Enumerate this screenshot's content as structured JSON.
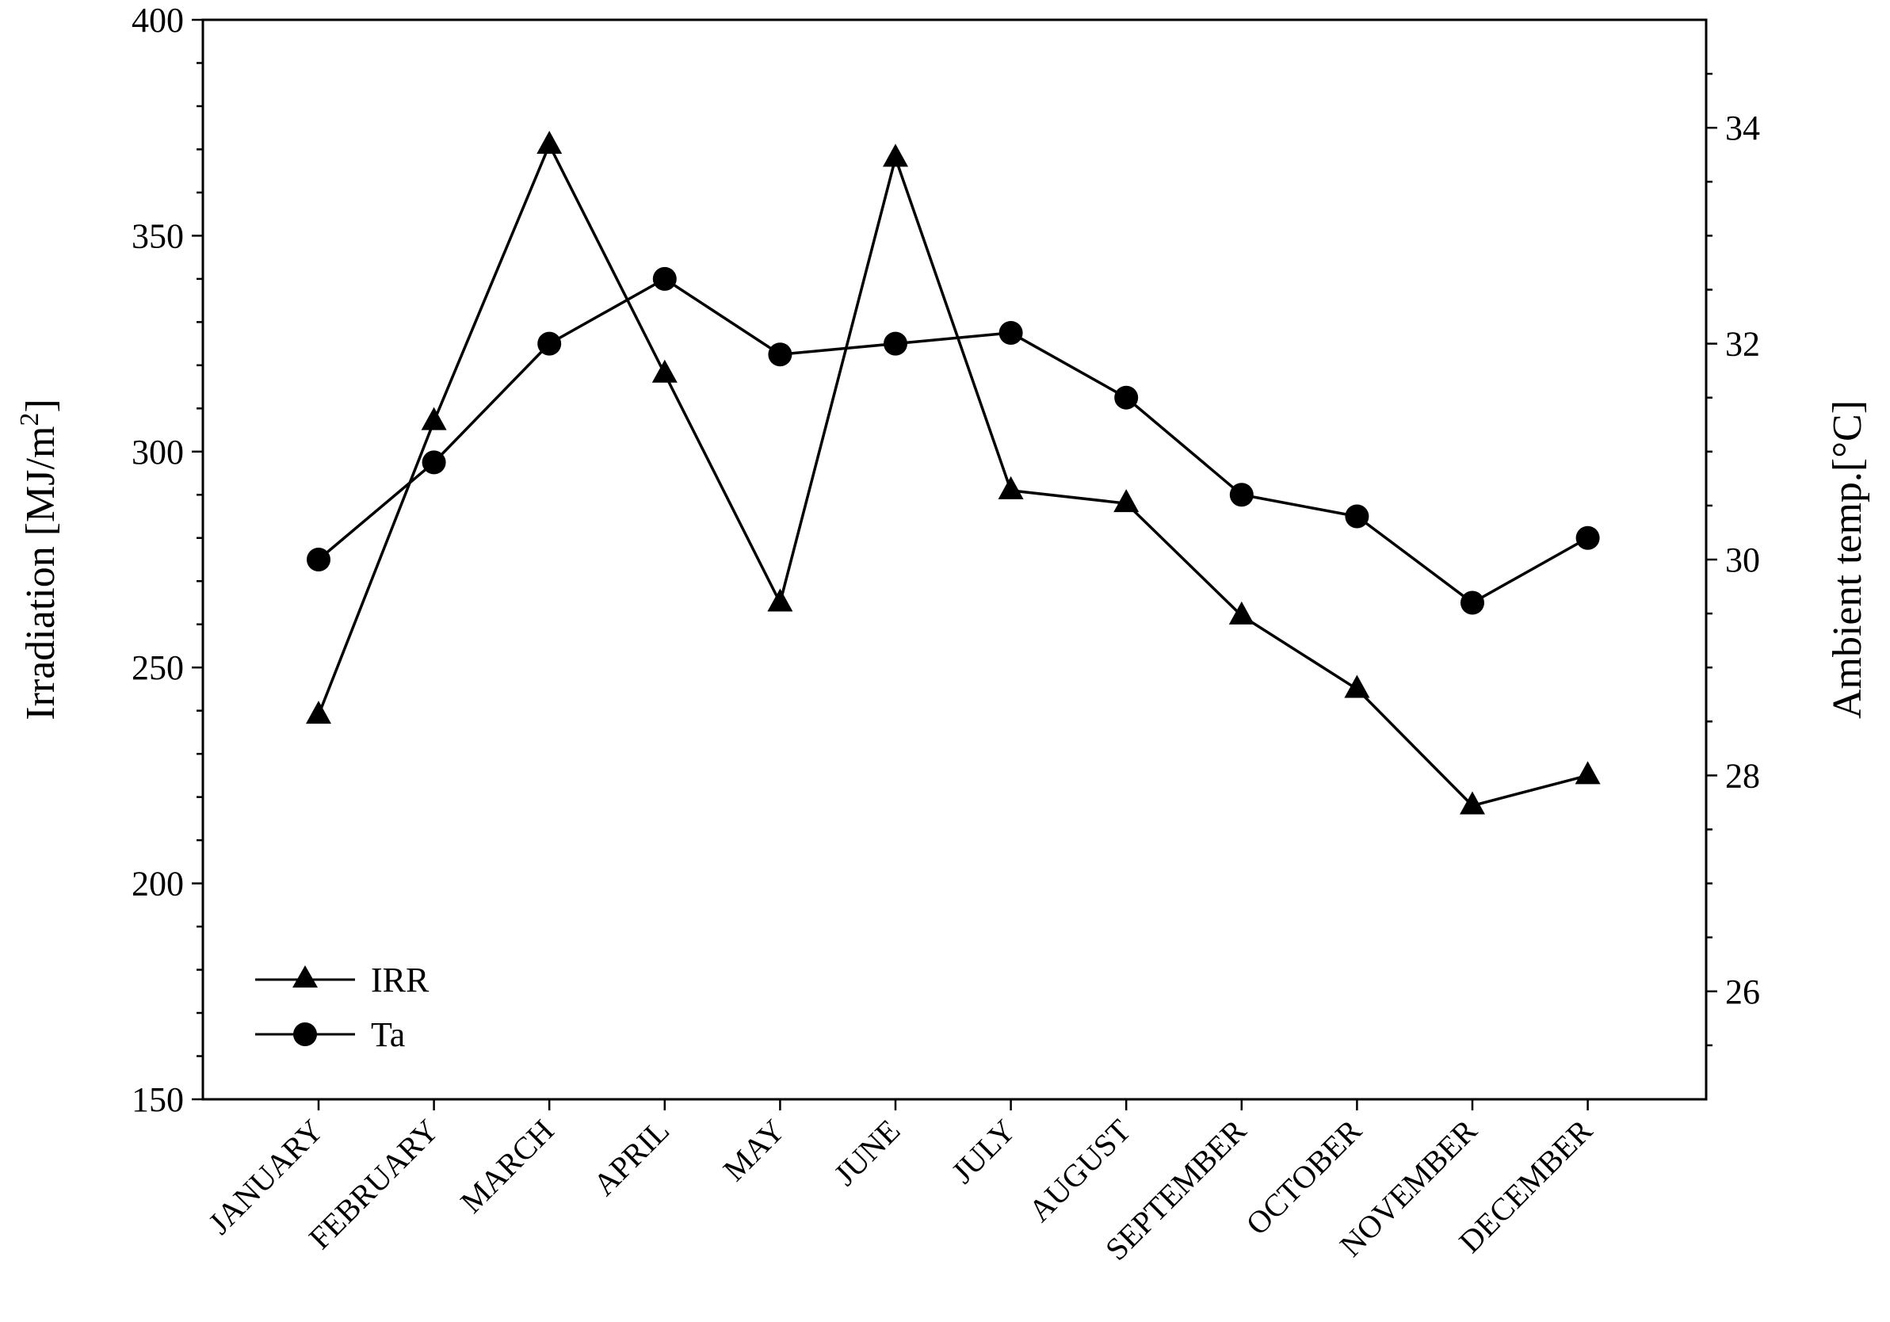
{
  "chart_data": {
    "type": "line",
    "categories": [
      "JANUARY",
      "FEBRUARY",
      "MARCH",
      "APRIL",
      "MAY",
      "JUNE",
      "JULY",
      "AUGUST",
      "SEPTEMBER",
      "OCTOBER",
      "NOVEMBER",
      "DECEMBER"
    ],
    "series": [
      {
        "name": "IRR",
        "axis": "left",
        "marker": "triangle",
        "values": [
          239,
          307,
          371,
          318,
          265,
          368,
          291,
          288,
          262,
          245,
          218,
          225
        ]
      },
      {
        "name": "Ta",
        "axis": "right",
        "marker": "circle",
        "values": [
          30.0,
          30.9,
          32.0,
          32.6,
          31.9,
          32.0,
          32.1,
          31.5,
          30.6,
          30.4,
          29.6,
          30.2
        ]
      }
    ],
    "y_left": {
      "label": "Irradiation [MJ/m²]",
      "label_main": "Irradiation [MJ/m",
      "label_sup": "2",
      "label_end": "]",
      "range": [
        150,
        400
      ],
      "ticks": [
        150,
        200,
        250,
        300,
        350,
        400
      ],
      "minor_step": 10
    },
    "y_right": {
      "label": "Ambient temp.[°C]",
      "range": [
        25,
        35
      ],
      "ticks": [
        26,
        28,
        30,
        32,
        34
      ],
      "minor_step": 0.5
    },
    "xlabel": "",
    "title": "",
    "grid": false,
    "legend": {
      "position": "bottom-left",
      "entries": [
        "IRR",
        "Ta"
      ]
    },
    "colors": {
      "line": "#000000",
      "marker": "#000000",
      "background": "#ffffff"
    }
  }
}
